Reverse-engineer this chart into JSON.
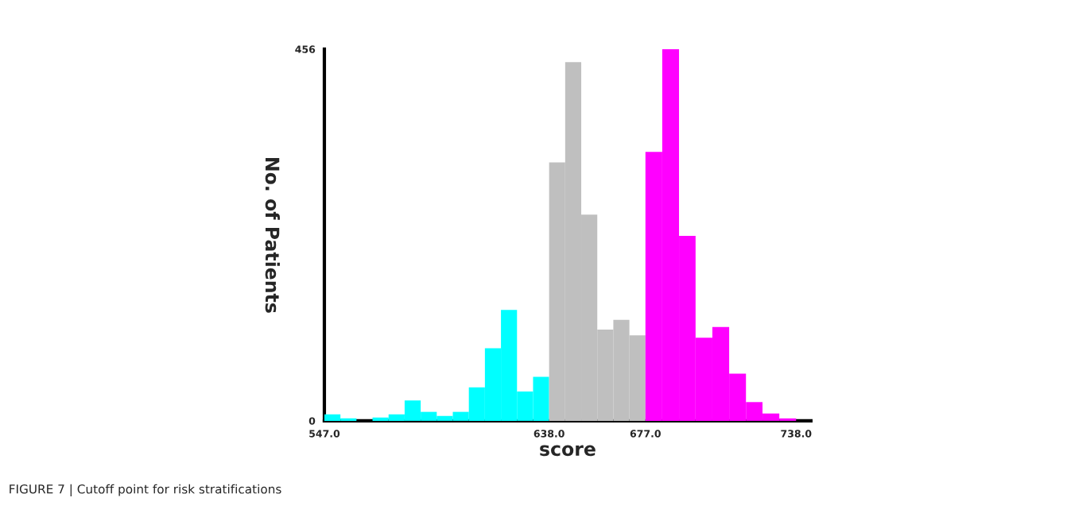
{
  "chart_data": {
    "type": "histogram",
    "xlabel": "score",
    "ylabel": "No. of Patients",
    "bins": [
      547,
      553.5,
      560,
      566.5,
      573,
      579.5,
      586,
      592.5,
      599,
      605.5,
      612,
      618.5,
      625,
      631.5,
      638,
      644.5,
      651,
      657.5,
      664,
      670.5,
      677,
      683.8,
      690.6,
      697.3,
      704.1,
      710.9,
      717.7,
      724.4,
      731.2,
      738
    ],
    "values": [
      8,
      3,
      0,
      4,
      8,
      25,
      11,
      6,
      11,
      41,
      89,
      136,
      36,
      54,
      317,
      440,
      253,
      112,
      124,
      105,
      330,
      456,
      227,
      102,
      115,
      58,
      23,
      9,
      3
    ],
    "colors": [
      "#00ffff",
      "#00ffff",
      "#00ffff",
      "#00ffff",
      "#00ffff",
      "#00ffff",
      "#00ffff",
      "#00ffff",
      "#00ffff",
      "#00ffff",
      "#00ffff",
      "#00ffff",
      "#00ffff",
      "#00ffff",
      "#bfbfbf",
      "#bfbfbf",
      "#bfbfbf",
      "#bfbfbf",
      "#bfbfbf",
      "#bfbfbf",
      "#ff00ff",
      "#ff00ff",
      "#ff00ff",
      "#ff00ff",
      "#ff00ff",
      "#ff00ff",
      "#ff00ff",
      "#ff00ff",
      "#ff00ff"
    ],
    "xlim": [
      547,
      744
    ],
    "ylim": [
      0,
      456
    ],
    "xticks": [
      {
        "value": 547,
        "label": "547.0"
      },
      {
        "value": 638,
        "label": "638.0"
      },
      {
        "value": 677,
        "label": "677.0"
      },
      {
        "value": 738,
        "label": "738.0"
      }
    ],
    "yticks": [
      0,
      456
    ],
    "grid": false,
    "annotations": [
      "FIGURE 7 | Cutoff point for risk stratifications"
    ]
  }
}
